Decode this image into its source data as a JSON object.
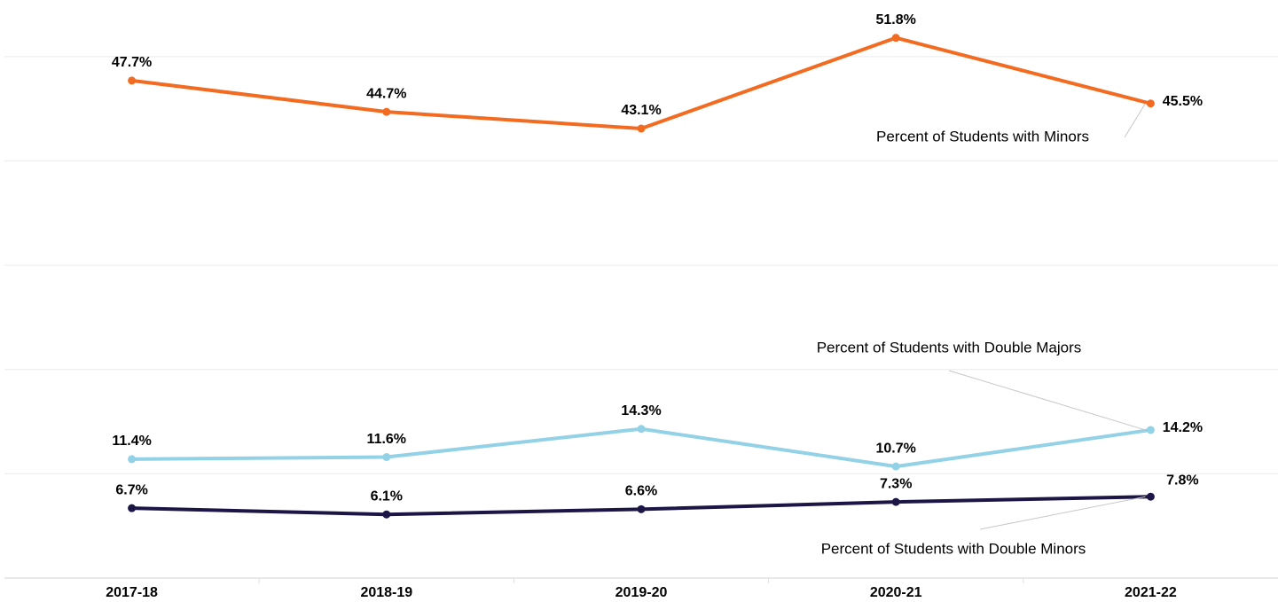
{
  "chart_data": {
    "type": "line",
    "categories": [
      "2017-18",
      "2018-19",
      "2019-20",
      "2020-21",
      "2021-22"
    ],
    "ylim": [
      0,
      55
    ],
    "yticks": [
      0,
      10,
      20,
      30,
      40,
      50
    ],
    "grid": true,
    "series": [
      {
        "name": "Percent of Students with Minors",
        "color": "#f26b21",
        "values": [
          47.7,
          44.7,
          43.1,
          51.8,
          45.5
        ],
        "value_labels": [
          "47.7%",
          "44.7%",
          "43.1%",
          "51.8%",
          "45.5%"
        ]
      },
      {
        "name": "Percent of Students with Double Majors",
        "color": "#92d1e6",
        "values": [
          11.4,
          11.6,
          14.3,
          10.7,
          14.2
        ],
        "value_labels": [
          "11.4%",
          "11.6%",
          "14.3%",
          "10.7%",
          "14.2%"
        ]
      },
      {
        "name": "Percent of Students with Double Minors",
        "color": "#1c1646",
        "values": [
          6.7,
          6.1,
          6.6,
          7.3,
          7.8
        ],
        "value_labels": [
          "6.7%",
          "6.1%",
          "6.6%",
          "7.3%",
          "7.8%"
        ]
      }
    ]
  }
}
